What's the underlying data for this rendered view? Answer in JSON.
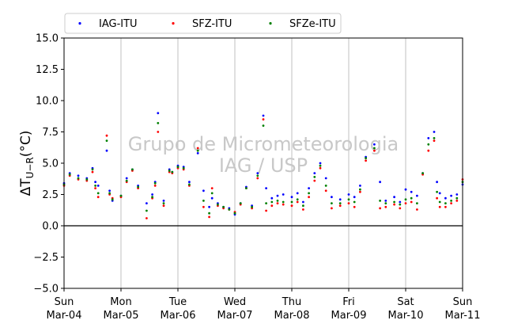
{
  "chart_data": {
    "type": "scatter",
    "ylabel": "ΔT_{U−R}(°C)",
    "ylim": [
      -5.0,
      15.0
    ],
    "yticks": [
      "−5.0",
      "−2.5",
      "0.0",
      "2.5",
      "5.0",
      "7.5",
      "10.0",
      "12.5",
      "15.0"
    ],
    "ytick_values": [
      -5.0,
      -2.5,
      0.0,
      2.5,
      5.0,
      7.5,
      10.0,
      12.5,
      15.0
    ],
    "xlim_days": [
      0,
      7
    ],
    "xticks": [
      {
        "day": "Sun",
        "date": "Mar-04"
      },
      {
        "day": "Mon",
        "date": "Mar-05"
      },
      {
        "day": "Tue",
        "date": "Mar-06"
      },
      {
        "day": "Wed",
        "date": "Mar-07"
      },
      {
        "day": "Thu",
        "date": "Mar-08"
      },
      {
        "day": "Fri",
        "date": "Mar-09"
      },
      {
        "day": "Sat",
        "date": "Mar-10"
      },
      {
        "day": "Sun",
        "date": "Mar-11"
      }
    ],
    "grid": "vertical",
    "legend_position": "top-left",
    "watermark": [
      "Grupo de Micrometeorologia",
      "IAG / USP"
    ],
    "series": [
      {
        "name": "IAG-ITU",
        "color": "#0000ff",
        "x": [
          0.0,
          0.1,
          0.25,
          0.4,
          0.5,
          0.55,
          0.6,
          0.75,
          0.8,
          0.85,
          1.0,
          1.1,
          1.2,
          1.3,
          1.45,
          1.55,
          1.6,
          1.65,
          1.75,
          1.85,
          1.9,
          2.0,
          2.1,
          2.2,
          2.35,
          2.45,
          2.55,
          2.6,
          2.7,
          2.8,
          2.9,
          3.0,
          3.1,
          3.2,
          3.3,
          3.4,
          3.5,
          3.55,
          3.65,
          3.75,
          3.85,
          4.0,
          4.1,
          4.2,
          4.3,
          4.4,
          4.5,
          4.6,
          4.7,
          4.85,
          5.0,
          5.1,
          5.2,
          5.3,
          5.45,
          5.55,
          5.65,
          5.8,
          5.9,
          6.0,
          6.1,
          6.2,
          6.3,
          6.4,
          6.5,
          6.55,
          6.6,
          6.7,
          6.8,
          6.9,
          7.0
        ],
        "y": [
          3.4,
          4.2,
          4.0,
          3.8,
          4.6,
          3.5,
          3.2,
          6.0,
          2.8,
          2.0,
          2.4,
          3.8,
          4.5,
          3.2,
          1.8,
          2.5,
          3.5,
          9.0,
          2.0,
          4.5,
          4.3,
          4.8,
          4.7,
          3.5,
          5.8,
          2.8,
          1.5,
          2.2,
          1.8,
          1.5,
          1.4,
          0.9,
          1.8,
          3.1,
          1.6,
          4.2,
          8.8,
          3.0,
          2.2,
          2.4,
          2.5,
          2.3,
          2.6,
          1.9,
          3.0,
          4.2,
          5.0,
          3.8,
          2.3,
          2.1,
          2.5,
          2.3,
          3.2,
          5.5,
          6.5,
          3.5,
          2.0,
          2.3,
          1.9,
          2.9,
          2.7,
          2.4,
          4.2,
          7.0,
          7.5,
          3.5,
          2.6,
          2.2,
          2.4,
          2.5,
          3.3
        ]
      },
      {
        "name": "SFZ-ITU",
        "color": "#ff0000",
        "x": [
          0.0,
          0.1,
          0.25,
          0.4,
          0.5,
          0.55,
          0.6,
          0.75,
          0.8,
          0.85,
          1.0,
          1.1,
          1.2,
          1.3,
          1.45,
          1.55,
          1.6,
          1.65,
          1.75,
          1.85,
          1.9,
          2.0,
          2.1,
          2.2,
          2.35,
          2.45,
          2.55,
          2.6,
          2.7,
          2.8,
          2.9,
          3.0,
          3.1,
          3.2,
          3.3,
          3.4,
          3.5,
          3.55,
          3.65,
          3.75,
          3.85,
          4.0,
          4.1,
          4.2,
          4.3,
          4.4,
          4.5,
          4.6,
          4.7,
          4.85,
          5.0,
          5.1,
          5.2,
          5.3,
          5.45,
          5.55,
          5.65,
          5.8,
          5.9,
          6.0,
          6.1,
          6.2,
          6.3,
          6.4,
          6.5,
          6.55,
          6.6,
          6.7,
          6.8,
          6.9,
          7.0
        ],
        "y": [
          3.2,
          4.0,
          3.7,
          3.6,
          4.3,
          3.0,
          2.3,
          7.2,
          2.5,
          2.2,
          2.3,
          3.5,
          4.4,
          3.0,
          0.6,
          2.2,
          3.2,
          7.5,
          1.6,
          4.3,
          4.2,
          4.6,
          4.5,
          3.2,
          6.2,
          1.5,
          0.7,
          3.0,
          1.6,
          1.4,
          1.3,
          1.1,
          1.7,
          3.0,
          1.4,
          3.8,
          8.5,
          1.2,
          1.6,
          1.8,
          1.7,
          1.6,
          1.9,
          1.3,
          2.3,
          3.6,
          4.6,
          2.8,
          1.4,
          1.6,
          1.8,
          1.5,
          2.7,
          5.2,
          6.0,
          1.4,
          1.5,
          1.7,
          1.4,
          1.8,
          1.9,
          1.3,
          4.1,
          6.0,
          6.8,
          2.2,
          1.5,
          1.5,
          1.8,
          2.0,
          3.7
        ]
      },
      {
        "name": "SFZe-ITU",
        "color": "#008000",
        "x": [
          0.0,
          0.1,
          0.25,
          0.4,
          0.5,
          0.55,
          0.6,
          0.75,
          0.8,
          0.85,
          1.0,
          1.1,
          1.2,
          1.3,
          1.45,
          1.55,
          1.6,
          1.65,
          1.75,
          1.85,
          1.9,
          2.0,
          2.1,
          2.2,
          2.35,
          2.45,
          2.55,
          2.6,
          2.7,
          2.8,
          2.9,
          3.0,
          3.1,
          3.2,
          3.3,
          3.4,
          3.5,
          3.55,
          3.65,
          3.75,
          3.85,
          4.0,
          4.1,
          4.2,
          4.3,
          4.4,
          4.5,
          4.6,
          4.7,
          4.85,
          5.0,
          5.1,
          5.2,
          5.3,
          5.45,
          5.55,
          5.65,
          5.8,
          5.9,
          6.0,
          6.1,
          6.2,
          6.3,
          6.4,
          6.5,
          6.55,
          6.6,
          6.7,
          6.8,
          6.9,
          7.0
        ],
        "y": [
          3.3,
          4.1,
          3.8,
          3.7,
          4.5,
          3.2,
          2.6,
          6.8,
          2.6,
          2.1,
          2.4,
          3.6,
          4.5,
          3.1,
          1.2,
          2.3,
          3.4,
          8.2,
          1.8,
          4.4,
          4.3,
          4.7,
          4.6,
          3.3,
          6.0,
          2.0,
          1.0,
          2.6,
          1.7,
          1.5,
          1.3,
          1.0,
          1.8,
          3.0,
          1.5,
          4.0,
          8.0,
          1.8,
          1.9,
          2.0,
          1.9,
          1.9,
          2.1,
          1.6,
          2.6,
          3.9,
          4.8,
          3.2,
          1.8,
          1.8,
          2.1,
          1.9,
          2.9,
          5.4,
          6.2,
          2.0,
          1.8,
          1.9,
          1.7,
          2.1,
          2.2,
          1.8,
          4.2,
          6.5,
          7.0,
          2.7,
          1.9,
          1.8,
          2.0,
          2.2,
          3.5
        ]
      }
    ]
  }
}
